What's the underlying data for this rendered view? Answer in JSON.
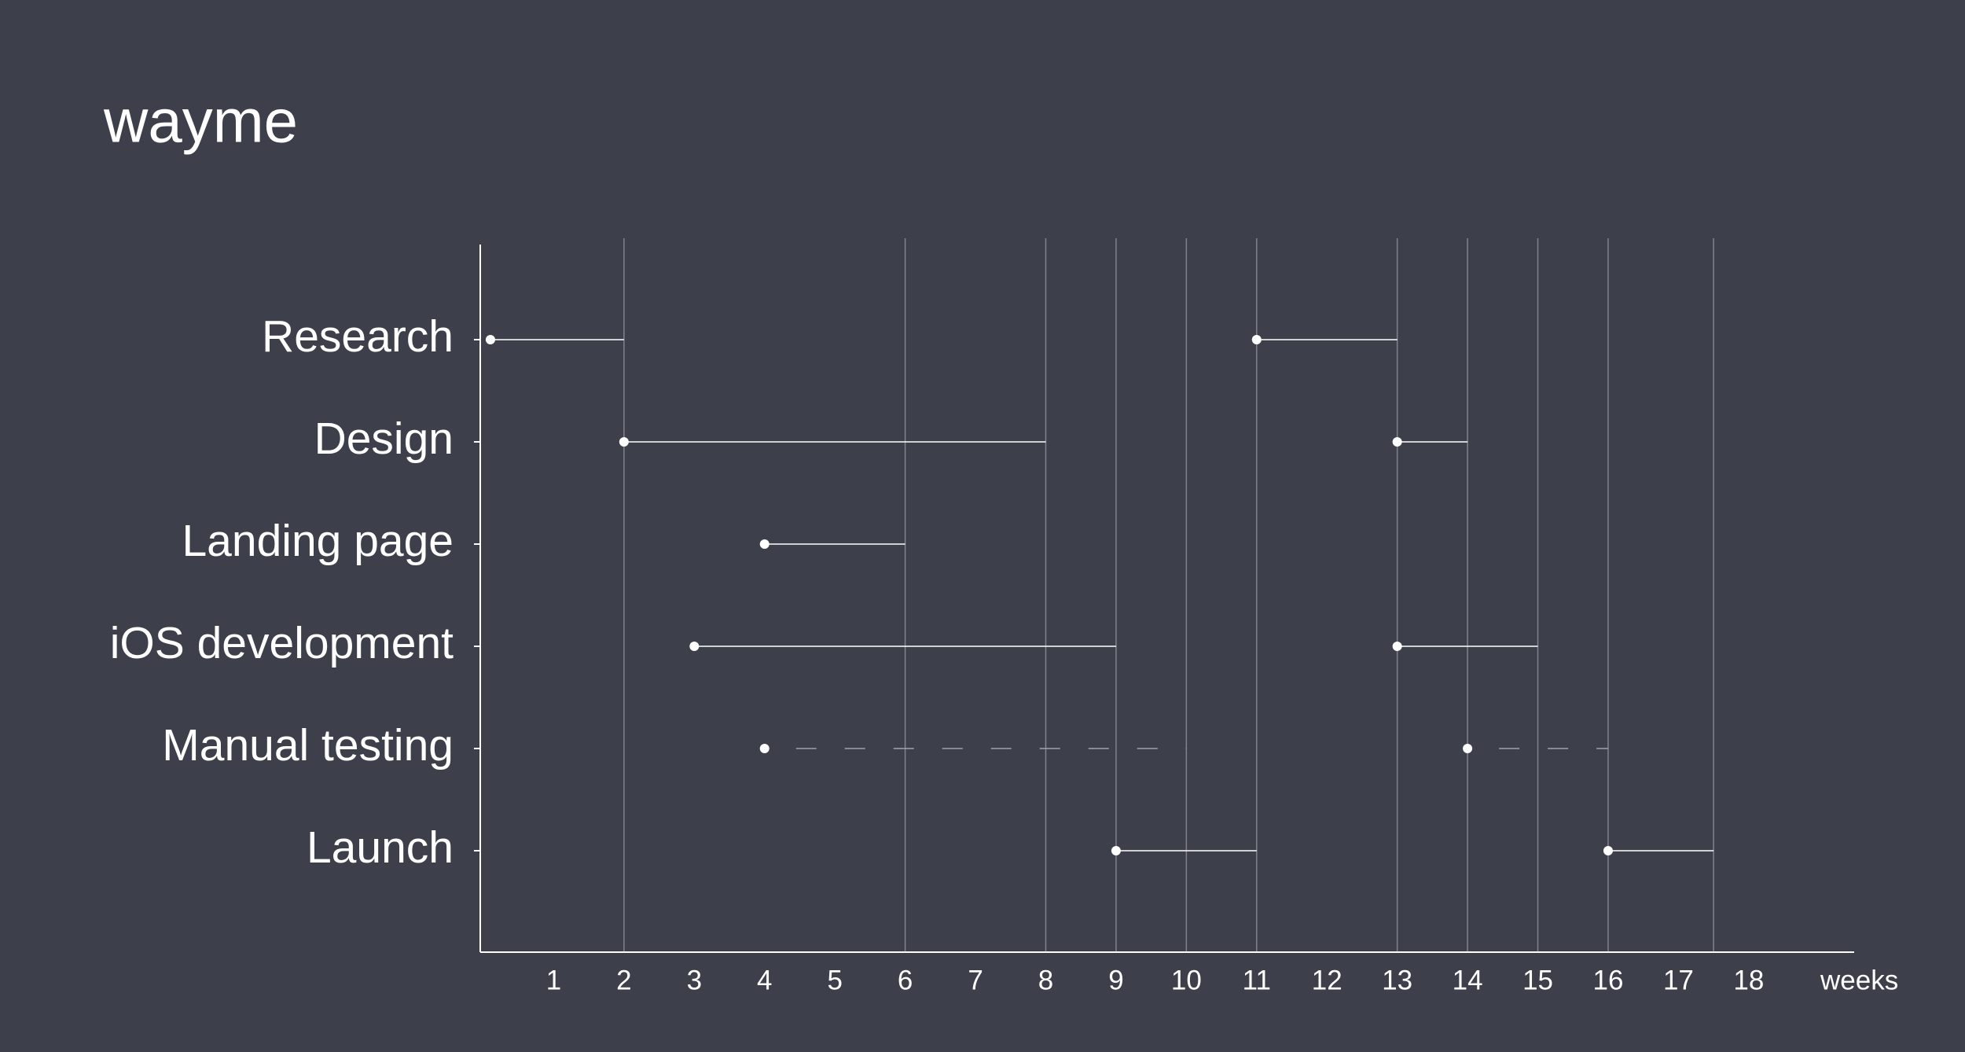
{
  "chart_data": {
    "type": "timeline",
    "title": "wayme",
    "x_label": "weeks",
    "xlim": [
      0,
      19.5
    ],
    "xticks": [
      1,
      2,
      3,
      4,
      5,
      6,
      7,
      8,
      9,
      10,
      11,
      12,
      13,
      14,
      15,
      16,
      17,
      18
    ],
    "color": "#ffffff",
    "background": "#3d404b",
    "guide_color": "#80838c",
    "tasks": [
      {
        "name": "Research",
        "segments": [
          {
            "start": 0.1,
            "end": 2
          },
          {
            "start": 11,
            "end": 13
          }
        ]
      },
      {
        "name": "Design",
        "segments": [
          {
            "start": 2,
            "end": 8
          },
          {
            "start": 13,
            "end": 14
          }
        ]
      },
      {
        "name": "Landing page",
        "segments": [
          {
            "start": 4,
            "end": 6
          }
        ]
      },
      {
        "name": "iOS development",
        "segments": [
          {
            "start": 3,
            "end": 9
          },
          {
            "start": 13,
            "end": 15
          }
        ]
      },
      {
        "name": "Manual testing",
        "dashed": true,
        "segments": [
          {
            "start": 4,
            "end": 10
          },
          {
            "start": 14,
            "end": 16
          }
        ]
      },
      {
        "name": "Launch",
        "segments": [
          {
            "start": 9,
            "end": 11
          },
          {
            "start": 16,
            "end": 17.5
          }
        ]
      }
    ]
  }
}
